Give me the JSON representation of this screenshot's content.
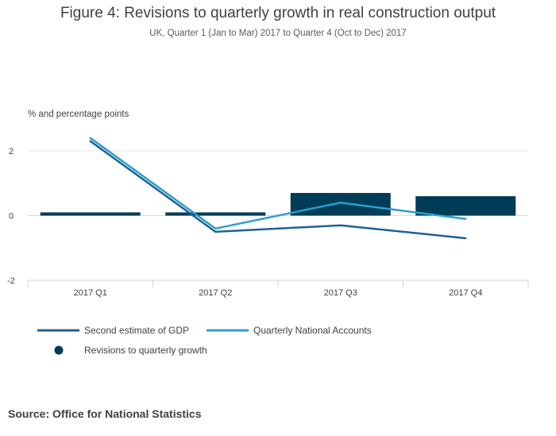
{
  "title": "Figure 4: Revisions to quarterly growth in real construction output",
  "subtitle": "UK, Quarter 1 (Jan to Mar) 2017 to Quarter 4 (Oct to Dec) 2017",
  "source": "Source: Office for National Statistics",
  "colors": {
    "gdp_line": "#206095",
    "qna_line": "#27a0cc",
    "revision_bar": "#003c57",
    "grid": "#e6e6e6",
    "axis": "#ccd6e0"
  },
  "chart_data": {
    "type": "bar",
    "ylabel": "% and percentage points",
    "ylim": [
      -2,
      2
    ],
    "yticks": [
      2,
      0,
      -2
    ],
    "categories": [
      "2017 Q1",
      "2017 Q2",
      "2017 Q3",
      "2017 Q4"
    ],
    "series": [
      {
        "name": "Second estimate of GDP",
        "type": "line",
        "values": [
          2.3,
          -0.5,
          -0.3,
          -0.7
        ]
      },
      {
        "name": "Quarterly National Accounts",
        "type": "line",
        "values": [
          2.4,
          -0.4,
          0.4,
          -0.1
        ]
      },
      {
        "name": "Revisions to quarterly growth",
        "type": "bar",
        "values": [
          0.1,
          0.1,
          0.7,
          0.6
        ]
      }
    ],
    "legend": [
      "Second estimate of GDP",
      "Quarterly National Accounts",
      "Revisions to quarterly growth"
    ]
  }
}
